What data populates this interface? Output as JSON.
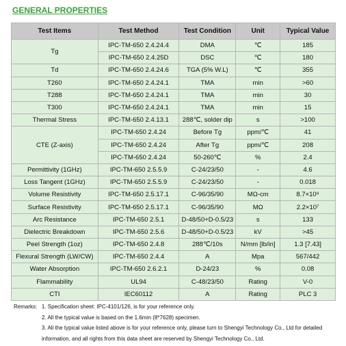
{
  "header": {
    "title": "GENERAL PROPERTIES"
  },
  "table": {
    "columns": [
      "Test Items",
      "Test Method",
      "Test Condition",
      "Unit",
      "Typical Value"
    ],
    "rows": [
      {
        "item": "Tg",
        "entries": [
          [
            "IPC-TM-650 2.4.24.4",
            "DMA",
            "℃",
            "185"
          ],
          [
            "IPC-TM-650 2.4.25D",
            "DSC",
            "℃",
            "180"
          ]
        ]
      },
      {
        "item": "Td",
        "entries": [
          [
            "IPC-TM-650 2.4.24.6",
            "TGA (5% W.L)",
            "℃",
            "355"
          ]
        ]
      },
      {
        "item": "T260",
        "entries": [
          [
            "IPC-TM-650 2.4.24.1",
            "TMA",
            "min",
            ">60"
          ]
        ]
      },
      {
        "item": "T288",
        "entries": [
          [
            "IPC-TM-650 2.4.24.1",
            "TMA",
            "min",
            "30"
          ]
        ]
      },
      {
        "item": "T300",
        "entries": [
          [
            "IPC-TM-650 2.4.24.1",
            "TMA",
            "min",
            "15"
          ]
        ]
      },
      {
        "item": "Thermal Stress",
        "entries": [
          [
            "IPC-TM-650 2.4.13.1",
            "288℃, solder dip",
            "s",
            ">100"
          ]
        ]
      },
      {
        "item": "CTE (Z-axis)",
        "entries": [
          [
            "IPC-TM-650 2.4.24",
            "Before Tg",
            "ppm/℃",
            "41"
          ],
          [
            "IPC-TM-650 2.4.24",
            "After Tg",
            "ppm/℃",
            "208"
          ],
          [
            "IPC-TM-650 2.4.24",
            "50-260℃",
            "%",
            "2.4"
          ]
        ]
      },
      {
        "item": "Permittivity (1GHz)",
        "entries": [
          [
            "IPC-TM-650 2.5.5.9",
            "C-24/23/50",
            "-",
            "4.6"
          ]
        ]
      },
      {
        "item": "Loss Tangent (1GHz)",
        "entries": [
          [
            "IPC-TM-650 2.5.5.9",
            "C-24/23/50",
            "-",
            "0.018"
          ]
        ]
      },
      {
        "item": "Volume Resistivity",
        "entries": [
          [
            "IPC-TM-650 2.5.17.1",
            "C-96/35/90",
            "MΩ-cm",
            "8.7×10⁸"
          ]
        ]
      },
      {
        "item": "Surface Resistivity",
        "entries": [
          [
            "IPC-TM-650 2.5.17.1",
            "C-96/35/90",
            "MΩ",
            "2.2×10⁷"
          ]
        ]
      },
      {
        "item": "Arc Resistance",
        "entries": [
          [
            "IPC-TM-650 2.5.1",
            "D-48/50+D-0.5/23",
            "s",
            "133"
          ]
        ]
      },
      {
        "item": "Dielectric Breakdown",
        "entries": [
          [
            "IPC-TM-650 2.5.6",
            "D-48/50+D-0.5/23",
            "kV",
            ">45"
          ]
        ]
      },
      {
        "item": "Peel Strength (1oz)",
        "entries": [
          [
            "IPC-TM-650 2.4.8",
            "288℃/10s",
            "N/mm [lb/in]",
            "1.3 [7.43]"
          ]
        ]
      },
      {
        "item": "Flexural Strength (LW/CW)",
        "entries": [
          [
            "IPC-TM-650 2.4.4",
            "A",
            "Mpa",
            "567/442"
          ]
        ]
      },
      {
        "item": "Water Absorption",
        "entries": [
          [
            "IPC-TM-650 2.6.2.1",
            "D-24/23",
            "%",
            "0.08"
          ]
        ]
      },
      {
        "item": "Flammability",
        "entries": [
          [
            "UL94",
            "C-48/23/50",
            "Rating",
            "V-0"
          ]
        ]
      },
      {
        "item": "CTI",
        "entries": [
          [
            "IEC60112",
            "A",
            "Rating",
            "PLC 3"
          ]
        ]
      }
    ]
  },
  "remarks": {
    "label": "Remarks:",
    "notes": [
      "1. Specification sheet: IPC-4101/126, is for your reference only.",
      "2. All the typical value is based on the 1.6mm (8*7628) specimen.",
      "3. All the typical value listed above is for your reference only, please turn to Shengyi Technology Co., Ltd for detailed information, and all rights from this data sheet are reserved by Shengyi Technology Co., Ltd."
    ]
  }
}
